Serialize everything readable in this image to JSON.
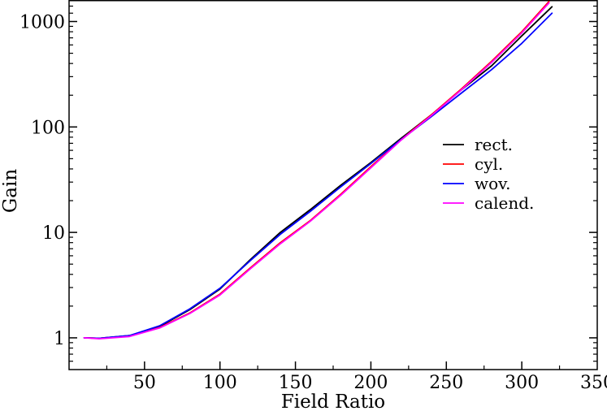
{
  "chart_data": {
    "type": "line",
    "title": "",
    "xlabel": "Field Ratio",
    "ylabel": "Gain",
    "xlim": [
      0,
      350
    ],
    "ylim": [
      0.5,
      1600
    ],
    "yscale": "log",
    "grid": false,
    "legend_position": "right",
    "xticks": [
      50,
      100,
      150,
      200,
      250,
      300,
      350
    ],
    "yticks": [
      {
        "value": 1,
        "label": "1"
      },
      {
        "value": 10,
        "label": "10"
      },
      {
        "value": 100,
        "label": "100"
      },
      {
        "value": 1000,
        "label": "1000"
      }
    ],
    "series": [
      {
        "name": "rect.",
        "color": "#000000",
        "x": [
          10,
          20,
          40,
          60,
          80,
          100,
          120,
          140,
          160,
          180,
          200,
          220,
          240,
          260,
          280,
          300,
          320
        ],
        "y": [
          1.0,
          0.99,
          1.05,
          1.28,
          1.85,
          2.9,
          5.5,
          10.0,
          16.5,
          28,
          46,
          78,
          130,
          225,
          380,
          730,
          1380
        ]
      },
      {
        "name": "cyl.",
        "color": "#ff0000",
        "x": [
          10,
          20,
          40,
          60,
          80,
          100,
          120,
          140,
          160,
          180,
          200,
          220,
          240,
          260,
          280,
          300,
          318
        ],
        "y": [
          1.0,
          0.99,
          1.04,
          1.25,
          1.72,
          2.6,
          4.6,
          8.0,
          13.0,
          23,
          42,
          76,
          130,
          230,
          420,
          800,
          1550
        ]
      },
      {
        "name": "wov.",
        "color": "#0000ff",
        "x": [
          10,
          20,
          40,
          60,
          80,
          100,
          120,
          140,
          160,
          180,
          200,
          220,
          240,
          260,
          280,
          300,
          320
        ],
        "y": [
          1.0,
          0.99,
          1.05,
          1.3,
          1.88,
          2.95,
          5.4,
          9.6,
          15.9,
          27,
          45,
          76,
          125,
          210,
          350,
          620,
          1200
        ]
      },
      {
        "name": "calend.",
        "color": "#ff00ff",
        "x": [
          10,
          20,
          40,
          60,
          80,
          100,
          120,
          140,
          160,
          180,
          200,
          220,
          240,
          260,
          280,
          300,
          318
        ],
        "y": [
          1.0,
          0.98,
          1.03,
          1.24,
          1.7,
          2.55,
          4.5,
          7.8,
          12.8,
          22.5,
          41,
          75,
          128,
          225,
          410,
          780,
          1500
        ]
      }
    ]
  }
}
